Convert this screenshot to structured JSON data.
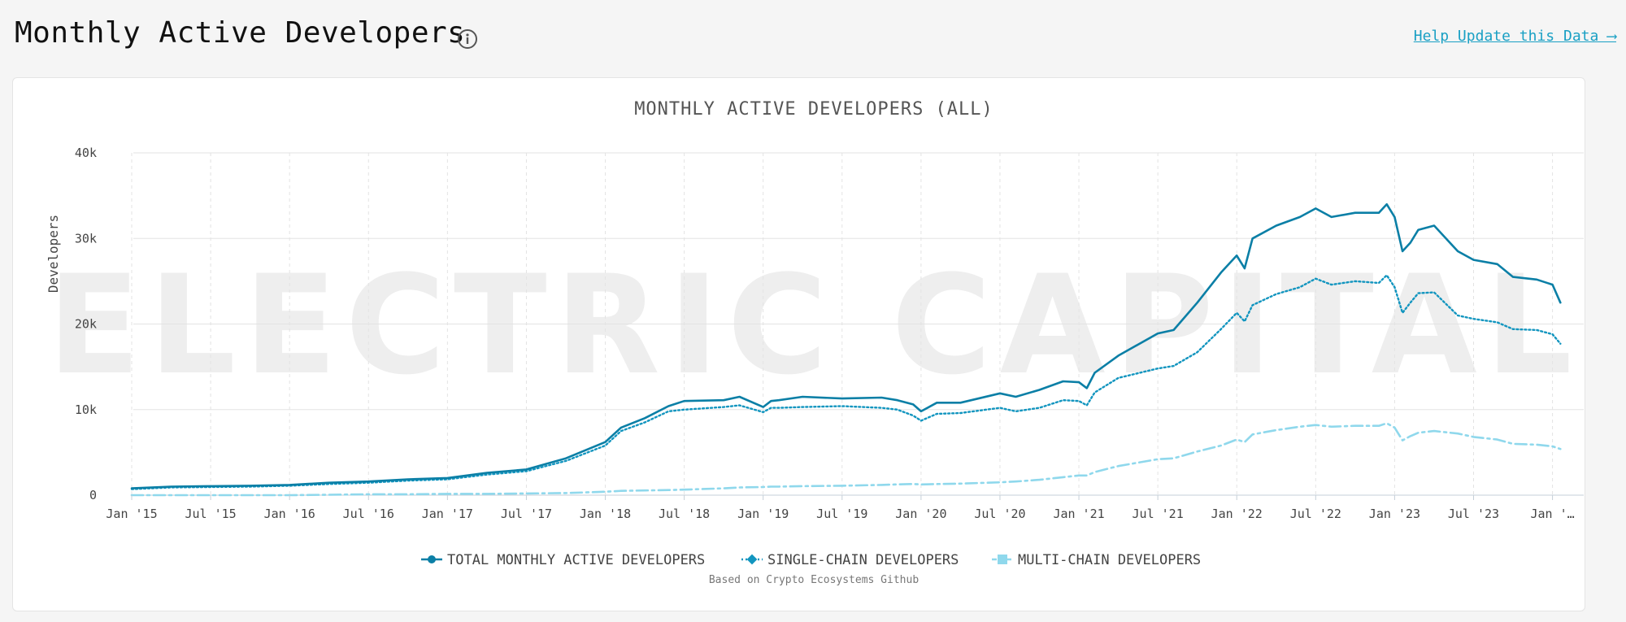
{
  "page": {
    "title": "Monthly Active Developers",
    "help_link": "Help Update this Data ⟶"
  },
  "chart_data": {
    "type": "line",
    "title": "MONTHLY ACTIVE DEVELOPERS (ALL)",
    "ylabel": "Developers",
    "xlabel": "",
    "ylim": [
      0,
      40000
    ],
    "y_ticks": [
      0,
      10000,
      20000,
      30000,
      40000
    ],
    "y_tick_labels": [
      "0",
      "10k",
      "20k",
      "30k",
      "40k"
    ],
    "x_range": [
      2015.0,
      2024.1
    ],
    "x_tick_labels": [
      "Jan '15",
      "Jul '15",
      "Jan '16",
      "Jul '16",
      "Jan '17",
      "Jul '17",
      "Jan '18",
      "Jul '18",
      "Jan '19",
      "Jul '19",
      "Jan '20",
      "Jul '20",
      "Jan '21",
      "Jul '21",
      "Jan '22",
      "Jul '22",
      "Jan '23",
      "Jul '23",
      "Jan '…"
    ],
    "grid": true,
    "legend_position": "bottom",
    "watermark": "ELECTRIC CAPITAL",
    "footnote": "Based on Crypto Ecosystems Github",
    "colors": {
      "total": "#0b7fa6",
      "single": "#1295bf",
      "multi": "#8fd8ec",
      "grid": "#e3e3e3",
      "axis_text": "#444444"
    },
    "x": [
      2015.0,
      2015.25,
      2015.5,
      2015.75,
      2016.0,
      2016.25,
      2016.5,
      2016.75,
      2017.0,
      2017.25,
      2017.5,
      2017.75,
      2018.0,
      2018.1,
      2018.25,
      2018.4,
      2018.5,
      2018.75,
      2018.85,
      2019.0,
      2019.05,
      2019.1,
      2019.25,
      2019.5,
      2019.75,
      2019.85,
      2019.95,
      2020.0,
      2020.1,
      2020.25,
      2020.5,
      2020.6,
      2020.75,
      2020.9,
      2021.0,
      2021.05,
      2021.1,
      2021.25,
      2021.5,
      2021.6,
      2021.75,
      2021.9,
      2022.0,
      2022.05,
      2022.1,
      2022.25,
      2022.4,
      2022.5,
      2022.6,
      2022.75,
      2022.9,
      2022.95,
      2023.0,
      2023.05,
      2023.1,
      2023.15,
      2023.25,
      2023.4,
      2023.5,
      2023.65,
      2023.75,
      2023.9,
      2024.0,
      2024.05
    ],
    "series": [
      {
        "name": "TOTAL MONTHLY ACTIVE DEVELOPERS",
        "values": [
          800,
          1000,
          1050,
          1100,
          1200,
          1450,
          1600,
          1850,
          2000,
          2600,
          3000,
          4300,
          6200,
          7900,
          9000,
          10400,
          11000,
          11100,
          11500,
          10300,
          11000,
          11100,
          11500,
          11300,
          11400,
          11100,
          10600,
          9800,
          10800,
          10800,
          11900,
          11500,
          12300,
          13300,
          13200,
          12500,
          14300,
          16300,
          18900,
          19300,
          22500,
          26000,
          28000,
          26500,
          30000,
          31500,
          32500,
          33500,
          32500,
          33000,
          33000,
          34000,
          32500,
          28500,
          29500,
          31000,
          31500,
          28500,
          27500,
          27000,
          25500,
          25200,
          24600,
          22500
        ]
      },
      {
        "name": "SINGLE-CHAIN DEVELOPERS",
        "values": [
          700,
          900,
          950,
          1000,
          1100,
          1300,
          1450,
          1700,
          1850,
          2400,
          2800,
          4000,
          5800,
          7500,
          8500,
          9800,
          10000,
          10300,
          10500,
          9700,
          10200,
          10200,
          10300,
          10400,
          10200,
          10000,
          9300,
          8700,
          9500,
          9600,
          10200,
          9800,
          10200,
          11100,
          11000,
          10500,
          12000,
          13700,
          14800,
          15100,
          16700,
          19400,
          21300,
          20300,
          22200,
          23500,
          24300,
          25300,
          24600,
          25000,
          24800,
          25700,
          24300,
          21300,
          22500,
          23600,
          23700,
          21000,
          20600,
          20200,
          19400,
          19300,
          18800,
          17700
        ]
      },
      {
        "name": "MULTI-CHAIN DEVELOPERS",
        "values": [
          0,
          0,
          0,
          0,
          0,
          50,
          100,
          100,
          150,
          150,
          200,
          250,
          400,
          500,
          550,
          600,
          650,
          800,
          900,
          950,
          1000,
          1000,
          1050,
          1100,
          1200,
          1250,
          1300,
          1250,
          1300,
          1350,
          1500,
          1600,
          1800,
          2100,
          2300,
          2300,
          2700,
          3400,
          4200,
          4300,
          5100,
          5800,
          6500,
          6200,
          7100,
          7600,
          8000,
          8200,
          8000,
          8100,
          8100,
          8400,
          7900,
          6400,
          6900,
          7300,
          7500,
          7200,
          6800,
          6500,
          6000,
          5900,
          5700,
          5400
        ]
      }
    ]
  }
}
